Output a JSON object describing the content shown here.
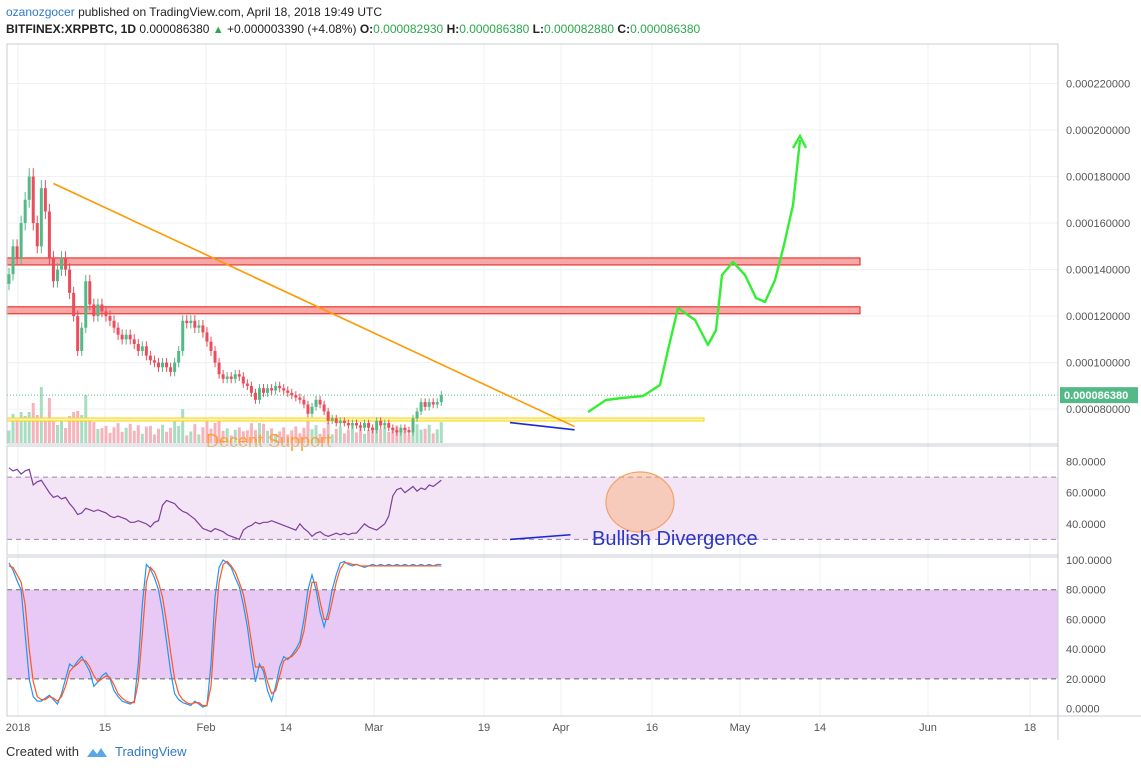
{
  "header": {
    "author": "ozanozgocer",
    "published_text": "published on TradingView.com, April 18, 2018 19:49 UTC",
    "symbol": "BITFINEX:XRPBTC, 1D",
    "last": "0.000086380",
    "change": "+0.000003390 (+4.08%)",
    "o_label": "O:",
    "o_value": "0.000082930",
    "h_label": "H:",
    "h_value": "0.000086380",
    "l_label": "L:",
    "l_value": "0.000082880",
    "c_label": "C:",
    "c_value": "0.000086380"
  },
  "footer": {
    "created_with": "Created with",
    "brand": "TradingView"
  },
  "colors": {
    "up": "#53b987",
    "down": "#eb4d5c",
    "trendline": "#ff9800",
    "zone_fill": "#f8a7a7",
    "zone_stroke": "#e53935",
    "support": "#ffd200",
    "rsi": "#7b3f9b",
    "stoch_k": "#2196f3",
    "stoch_d": "#ff5722",
    "projection": "#33ee33"
  },
  "chart_data": [
    {
      "type": "candlestick",
      "symbol": "BITFINEX:XRPBTC",
      "interval": "1D",
      "x_tick_labels": [
        "2018",
        "15",
        "Feb",
        "14",
        "Mar",
        "19",
        "Apr",
        "16",
        "May",
        "14",
        "Jun",
        "18"
      ],
      "y_tick_labels": [
        "0.000220000",
        "0.000200000",
        "0.000180000",
        "0.000160000",
        "0.000140000",
        "0.000120000",
        "0.000100000",
        "0.000080000"
      ],
      "ylim": [
        6.5e-05,
        0.000237
      ],
      "last_price_label": "0.000086380",
      "closes": [
        0.000138,
        0.00015,
        0.000145,
        0.00016,
        0.00017,
        0.00018,
        0.00016,
        0.00015,
        0.000175,
        0.000165,
        0.000145,
        0.000135,
        0.00014,
        0.000145,
        0.00014,
        0.00013,
        0.00012,
        0.000105,
        0.000115,
        0.000135,
        0.000125,
        0.00012,
        0.000125,
        0.000122,
        0.00012,
        0.000118,
        0.000115,
        0.000112,
        0.00011,
        0.000112,
        0.00011,
        0.000108,
        0.000105,
        0.000107,
        0.000103,
        0.000101,
        0.0001,
        9.8e-05,
        0.0001,
        9.8e-05,
        9.6e-05,
        0.0001,
        0.000105,
        0.000118,
        0.000117,
        0.000118,
        0.000115,
        0.000116,
        0.000113,
        0.000109,
        0.000105,
        0.0001,
        9.5e-05,
        9.3e-05,
        9.4e-05,
        9.3e-05,
        9.5e-05,
        9.4e-05,
        9.1e-05,
        9e-05,
        8.7e-05,
        8.4e-05,
        8.9e-05,
        8.7e-05,
        8.9e-05,
        8.8e-05,
        9e-05,
        8.9e-05,
        8.8e-05,
        8.7e-05,
        8.6e-05,
        8.5e-05,
        8.4e-05,
        8.2e-05,
        7.8e-05,
        8.1e-05,
        8.4e-05,
        8.2e-05,
        7.9e-05,
        7.5e-05,
        7.6e-05,
        7.4e-05,
        7.5e-05,
        7.4e-05,
        7.3e-05,
        7.4e-05,
        7.3e-05,
        7.2e-05,
        7.4e-05,
        7.2e-05,
        7.1e-05,
        7.5e-05,
        7.3e-05,
        7.4e-05,
        7.2e-05,
        7.1e-05,
        7e-05,
        7.2e-05,
        7.1e-05,
        7e-05,
        7.6e-05,
        7.9e-05,
        8.3e-05,
        8.1e-05,
        8.3e-05,
        8.2e-05,
        8.3e-05,
        8.6e-05
      ],
      "annotations": [
        {
          "type": "text",
          "text": "Decent Support"
        },
        {
          "type": "text",
          "text": "Bullish Divergence"
        }
      ]
    },
    {
      "type": "line",
      "indicator": "RSI",
      "y_tick_labels": [
        "80.0000",
        "60.0000",
        "40.0000"
      ],
      "ylim": [
        20,
        90
      ],
      "band": [
        30,
        70
      ],
      "values": [
        76,
        74,
        75,
        72,
        74,
        75,
        65,
        67,
        68,
        64,
        60,
        57,
        58,
        56,
        57,
        53,
        50,
        46,
        47,
        50,
        49,
        48,
        49,
        48,
        47,
        45,
        44,
        45,
        44,
        43,
        41,
        41,
        42,
        41,
        40,
        38,
        41,
        42,
        52,
        55,
        54,
        53,
        50,
        48,
        47,
        45,
        43,
        40,
        37,
        36,
        35,
        37,
        36,
        35,
        33,
        32,
        31,
        30,
        36,
        38,
        39,
        41,
        40,
        41,
        41,
        42,
        41,
        40,
        39,
        38,
        37,
        36,
        40,
        37,
        35,
        32,
        34,
        35,
        33,
        32,
        33,
        34,
        33,
        34,
        33,
        34,
        34,
        37,
        40,
        38,
        37,
        36,
        38,
        40,
        45,
        58,
        62,
        63,
        60,
        62,
        64,
        61,
        63,
        62,
        65,
        64,
        66,
        68
      ]
    },
    {
      "type": "line",
      "indicator": "Stochastic",
      "y_tick_labels": [
        "100.0000",
        "80.0000",
        "60.0000",
        "40.0000",
        "20.0000",
        "0.0000"
      ],
      "ylim": [
        -5,
        102
      ],
      "band": [
        20,
        80
      ],
      "series": [
        {
          "values": [
            98,
            93,
            86,
            80,
            50,
            20,
            8,
            5,
            5,
            7,
            9,
            6,
            3,
            10,
            20,
            30,
            28,
            32,
            35,
            30,
            25,
            15,
            18,
            22,
            24,
            20,
            12,
            8,
            5,
            4,
            3,
            5,
            30,
            70,
            97,
            94,
            88,
            80,
            65,
            45,
            25,
            10,
            6,
            4,
            3,
            2,
            5,
            3,
            1,
            2,
            30,
            75,
            95,
            100,
            98,
            95,
            88,
            82,
            70,
            55,
            35,
            18,
            30,
            25,
            12,
            5,
            15,
            28,
            35,
            33,
            36,
            40,
            45,
            60,
            80,
            90,
            80,
            65,
            55,
            65,
            80,
            90,
            98,
            99,
            97,
            96,
            97,
            96,
            95,
            96,
            97,
            96,
            97,
            96,
            97,
            96,
            97,
            96,
            97,
            96,
            97,
            96,
            97,
            96,
            97,
            96,
            97,
            97
          ]
        },
        {
          "values": [
            96,
            95,
            90,
            85,
            70,
            40,
            18,
            8,
            6,
            6,
            8,
            7,
            5,
            8,
            15,
            25,
            28,
            30,
            33,
            32,
            28,
            22,
            18,
            20,
            22,
            21,
            16,
            10,
            7,
            5,
            4,
            4,
            18,
            50,
            85,
            95,
            92,
            85,
            75,
            58,
            38,
            20,
            10,
            6,
            4,
            3,
            4,
            4,
            2,
            2,
            15,
            55,
            85,
            97,
            99,
            96,
            92,
            85,
            77,
            63,
            45,
            28,
            28,
            28,
            18,
            10,
            12,
            22,
            32,
            34,
            35,
            38,
            42,
            52,
            70,
            85,
            85,
            72,
            60,
            60,
            72,
            85,
            94,
            98,
            98,
            97,
            97,
            96,
            96,
            96,
            96,
            96,
            96,
            96,
            96,
            96,
            96,
            96,
            96,
            96,
            96,
            96,
            96,
            96,
            96,
            96,
            96,
            96
          ]
        }
      ]
    }
  ]
}
